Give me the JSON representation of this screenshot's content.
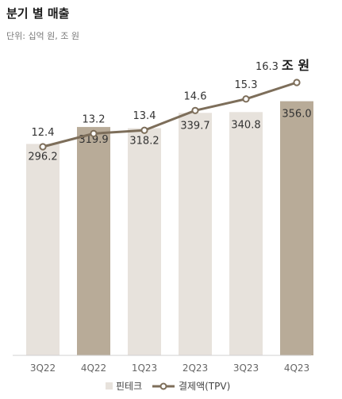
{
  "header": {
    "title": "분기 별 매출",
    "unit": "단위: 십억 원, 조 원"
  },
  "colors": {
    "bar_light": "#e7e2dc",
    "bar_dark": "#b8ab98",
    "line": "#7d6e5a",
    "axis": "#d0d0d0"
  },
  "chart_data": {
    "type": "bar",
    "categories": [
      "3Q22",
      "4Q22",
      "1Q23",
      "2Q23",
      "3Q23",
      "4Q23"
    ],
    "highlight_categories": [
      "4Q22",
      "4Q23"
    ],
    "series": [
      {
        "name": "핀테크",
        "type": "bar",
        "values": [
          296.2,
          319.9,
          318.2,
          339.7,
          340.8,
          356.0
        ]
      },
      {
        "name": "결제액(TPV)",
        "type": "line",
        "values": [
          12.4,
          13.2,
          13.4,
          14.6,
          15.3,
          16.3
        ]
      }
    ],
    "bar_labels": [
      "296.2",
      "319.9",
      "318.2",
      "339.7",
      "340.8",
      "356.0"
    ],
    "line_labels": [
      "12.4",
      "13.2",
      "13.4",
      "14.6",
      "15.3",
      "16.3"
    ],
    "last_line_unit": "조 원",
    "bar_ylim": [
      0,
      400
    ],
    "line_ylim": [
      0,
      20
    ],
    "legend": [
      "핀테크",
      "결제액(TPV)"
    ],
    "legend_position": "bottom-center",
    "grid": false
  }
}
